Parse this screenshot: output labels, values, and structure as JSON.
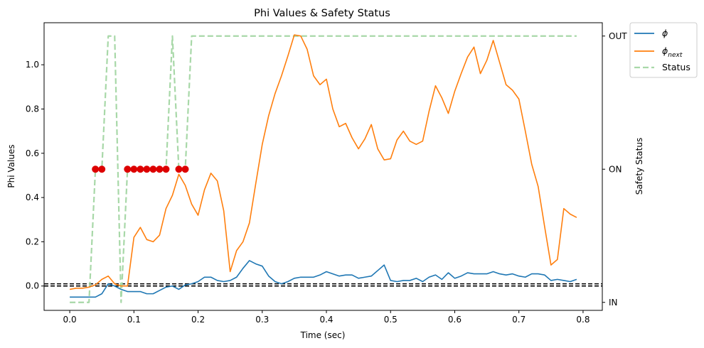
{
  "chart_data": {
    "type": "line",
    "title": "Phi Values & Safety Status",
    "xlabel": "Time (sec)",
    "ylabel": "Phi Values",
    "y2label": "Safety Status",
    "xlim": [
      -0.04,
      0.83
    ],
    "ylim": [
      -0.11,
      1.19
    ],
    "x_ticks": [
      0.0,
      0.1,
      0.2,
      0.3,
      0.4,
      0.5,
      0.6,
      0.7,
      0.8
    ],
    "x_tick_labels": [
      "0.0",
      "0.1",
      "0.2",
      "0.3",
      "0.4",
      "0.5",
      "0.6",
      "0.7",
      "0.8"
    ],
    "y_ticks": [
      0.0,
      0.2,
      0.4,
      0.6,
      0.8,
      1.0
    ],
    "y_tick_labels": [
      "0.0",
      "0.2",
      "0.4",
      "0.6",
      "0.8",
      "1.0"
    ],
    "y2lim": [
      -0.06,
      2.1
    ],
    "y2_ticks": [
      0,
      1,
      2
    ],
    "y2_tick_labels": [
      "IN",
      "ON",
      "OUT"
    ],
    "grid": false,
    "legend_position": "outside-top-right",
    "x": [
      0.0,
      0.01,
      0.02,
      0.03,
      0.04,
      0.05,
      0.06,
      0.07,
      0.08,
      0.09,
      0.1,
      0.11,
      0.12,
      0.13,
      0.14,
      0.15,
      0.16,
      0.17,
      0.18,
      0.19,
      0.2,
      0.21,
      0.22,
      0.23,
      0.24,
      0.25,
      0.26,
      0.27,
      0.28,
      0.29,
      0.3,
      0.31,
      0.32,
      0.33,
      0.34,
      0.35,
      0.36,
      0.37,
      0.38,
      0.39,
      0.4,
      0.41,
      0.42,
      0.43,
      0.44,
      0.45,
      0.46,
      0.47,
      0.48,
      0.49,
      0.5,
      0.51,
      0.52,
      0.53,
      0.54,
      0.55,
      0.56,
      0.57,
      0.58,
      0.59,
      0.6,
      0.61,
      0.62,
      0.63,
      0.64,
      0.65,
      0.66,
      0.67,
      0.68,
      0.69,
      0.7,
      0.71,
      0.72,
      0.73,
      0.74,
      0.75,
      0.76,
      0.77,
      0.78,
      0.79
    ],
    "series": [
      {
        "name": "ϕ",
        "axis": "left",
        "color": "#1f77b4",
        "style": "solid",
        "values": [
          -0.05,
          -0.05,
          -0.05,
          -0.05,
          -0.05,
          -0.035,
          0.01,
          0.0,
          -0.015,
          -0.025,
          -0.025,
          -0.025,
          -0.035,
          -0.035,
          -0.02,
          -0.005,
          0.0,
          -0.015,
          0.005,
          0.01,
          0.02,
          0.04,
          0.04,
          0.025,
          0.02,
          0.025,
          0.04,
          0.08,
          0.115,
          0.1,
          0.09,
          0.045,
          0.02,
          0.01,
          0.02,
          0.035,
          0.04,
          0.04,
          0.04,
          0.05,
          0.065,
          0.055,
          0.045,
          0.05,
          0.05,
          0.035,
          0.04,
          0.045,
          0.07,
          0.095,
          0.025,
          0.02,
          0.025,
          0.025,
          0.035,
          0.02,
          0.04,
          0.05,
          0.03,
          0.06,
          0.035,
          0.045,
          0.06,
          0.055,
          0.055,
          0.055,
          0.065,
          0.055,
          0.05,
          0.055,
          0.045,
          0.04,
          0.055,
          0.055,
          0.05,
          0.025,
          0.03,
          0.025,
          0.02,
          0.03
        ]
      },
      {
        "name": "ϕ_next",
        "axis": "left",
        "color": "#ff7f0e",
        "style": "solid",
        "values": [
          -0.015,
          -0.01,
          -0.01,
          -0.005,
          0.005,
          0.03,
          0.045,
          0.01,
          0.0,
          0.0,
          0.22,
          0.265,
          0.21,
          0.2,
          0.23,
          0.35,
          0.41,
          0.505,
          0.455,
          0.37,
          0.32,
          0.435,
          0.51,
          0.475,
          0.34,
          0.065,
          0.16,
          0.2,
          0.285,
          0.465,
          0.64,
          0.77,
          0.87,
          0.95,
          1.04,
          1.135,
          1.13,
          1.07,
          0.95,
          0.91,
          0.935,
          0.8,
          0.72,
          0.735,
          0.67,
          0.62,
          0.665,
          0.73,
          0.62,
          0.57,
          0.575,
          0.66,
          0.7,
          0.655,
          0.64,
          0.655,
          0.79,
          0.905,
          0.85,
          0.78,
          0.88,
          0.96,
          1.035,
          1.08,
          0.96,
          1.02,
          1.11,
          1.01,
          0.91,
          0.885,
          0.845,
          0.7,
          0.55,
          0.45,
          0.27,
          0.095,
          0.12,
          0.35,
          0.325,
          0.31
        ]
      },
      {
        "name": "Status",
        "axis": "right",
        "color": "#a8d8a8",
        "style": "dashed",
        "values": [
          0,
          0,
          0,
          0,
          1,
          1,
          2,
          2,
          0,
          1,
          1,
          1,
          1,
          1,
          1,
          1,
          2,
          1,
          1,
          2,
          2,
          2,
          2,
          2,
          2,
          2,
          2,
          2,
          2,
          2,
          2,
          2,
          2,
          2,
          2,
          2,
          2,
          2,
          2,
          2,
          2,
          2,
          2,
          2,
          2,
          2,
          2,
          2,
          2,
          2,
          2,
          2,
          2,
          2,
          2,
          2,
          2,
          2,
          2,
          2,
          2,
          2,
          2,
          2,
          2,
          2,
          2,
          2,
          2,
          2,
          2,
          2,
          2,
          2,
          2,
          2,
          2,
          2,
          2,
          2
        ]
      }
    ],
    "status_markers": {
      "color": "#dd0000",
      "axis": "right",
      "points": [
        {
          "x": 0.04,
          "y": 1
        },
        {
          "x": 0.05,
          "y": 1
        },
        {
          "x": 0.09,
          "y": 1
        },
        {
          "x": 0.1,
          "y": 1
        },
        {
          "x": 0.11,
          "y": 1
        },
        {
          "x": 0.12,
          "y": 1
        },
        {
          "x": 0.13,
          "y": 1
        },
        {
          "x": 0.14,
          "y": 1
        },
        {
          "x": 0.15,
          "y": 1
        },
        {
          "x": 0.17,
          "y": 1
        },
        {
          "x": 0.18,
          "y": 1
        }
      ]
    },
    "reference_lines": [
      {
        "axis": "left",
        "y": 0.0
      },
      {
        "axis": "left",
        "y": 0.01
      }
    ],
    "legend": [
      {
        "label": "ϕ",
        "sub": "",
        "color": "#1f77b4",
        "style": "solid"
      },
      {
        "label": "ϕ",
        "sub": "next",
        "color": "#ff7f0e",
        "style": "solid"
      },
      {
        "label": "Status",
        "sub": "",
        "color": "#a8d8a8",
        "style": "dashed"
      }
    ]
  }
}
